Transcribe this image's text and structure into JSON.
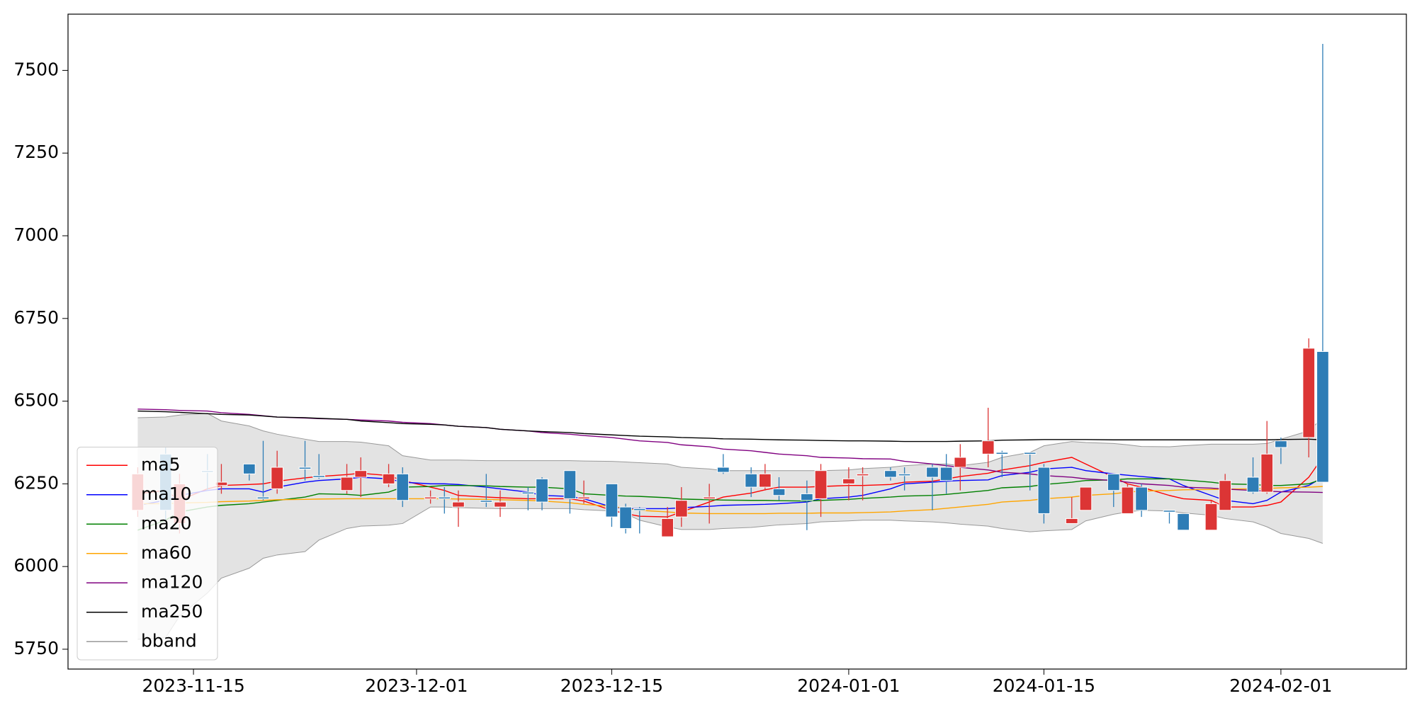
{
  "chart_data": {
    "type": "candlestick",
    "x": [
      "2023-11-11",
      "2023-11-13",
      "2023-11-14",
      "2023-11-16",
      "2023-11-17",
      "2023-11-19",
      "2023-11-20",
      "2023-11-21",
      "2023-11-23",
      "2023-11-24",
      "2023-11-26",
      "2023-11-27",
      "2023-11-29",
      "2023-11-30",
      "2023-12-02",
      "2023-12-03",
      "2023-12-04",
      "2023-12-06",
      "2023-12-07",
      "2023-12-09",
      "2023-12-10",
      "2023-12-12",
      "2023-12-13",
      "2023-12-15",
      "2023-12-16",
      "2023-12-17",
      "2023-12-19",
      "2023-12-20",
      "2023-12-22",
      "2023-12-23",
      "2023-12-25",
      "2023-12-26",
      "2023-12-27",
      "2023-12-29",
      "2023-12-30",
      "2024-01-01",
      "2024-01-02",
      "2024-01-04",
      "2024-01-05",
      "2024-01-07",
      "2024-01-08",
      "2024-01-09",
      "2024-01-11",
      "2024-01-12",
      "2024-01-14",
      "2024-01-15",
      "2024-01-17",
      "2024-01-18",
      "2024-01-20",
      "2024-01-21",
      "2024-01-22",
      "2024-01-24",
      "2024-01-25",
      "2024-01-27",
      "2024-01-28",
      "2024-01-30",
      "2024-01-31",
      "2024-02-01",
      "2024-02-03",
      "2024-02-04"
    ],
    "open": [
      6170,
      6340,
      6130,
      6290,
      6245,
      6310,
      6210,
      6235,
      6300,
      6275,
      6230,
      6270,
      6250,
      6280,
      6205,
      6210,
      6180,
      6200,
      6180,
      6225,
      6265,
      6290,
      6205,
      6250,
      6180,
      6175,
      6090,
      6150,
      6205,
      6300,
      6280,
      6240,
      6235,
      6220,
      6205,
      6250,
      6275,
      6290,
      6280,
      6300,
      6300,
      6300,
      6340,
      6345,
      6345,
      6300,
      6130,
      6170,
      6280,
      6160,
      6240,
      6170,
      6160,
      6110,
      6170,
      6270,
      6225,
      6380,
      6390,
      6650
    ],
    "high": [
      6300,
      6360,
      6280,
      6340,
      6310,
      6310,
      6380,
      6350,
      6380,
      6340,
      6310,
      6330,
      6310,
      6300,
      6230,
      6240,
      6230,
      6280,
      6230,
      6240,
      6270,
      6290,
      6260,
      6250,
      6190,
      6180,
      6180,
      6240,
      6250,
      6340,
      6300,
      6310,
      6270,
      6260,
      6310,
      6300,
      6300,
      6300,
      6300,
      6310,
      6340,
      6370,
      6480,
      6350,
      6340,
      6310,
      6210,
      6240,
      6280,
      6250,
      6250,
      6170,
      6160,
      6200,
      6280,
      6330,
      6440,
      6390,
      6690,
      7580
    ],
    "low": [
      6150,
      6140,
      6100,
      6230,
      6220,
      6260,
      6200,
      6220,
      6260,
      6265,
      6220,
      6210,
      6240,
      6180,
      6190,
      6160,
      6120,
      6180,
      6150,
      6170,
      6170,
      6160,
      6190,
      6120,
      6100,
      6100,
      6090,
      6120,
      6130,
      6280,
      6210,
      6230,
      6200,
      6110,
      6150,
      6200,
      6200,
      6260,
      6230,
      6170,
      6220,
      6230,
      6300,
      6270,
      6230,
      6130,
      6130,
      6170,
      6180,
      6160,
      6150,
      6130,
      6110,
      6110,
      6170,
      6220,
      6220,
      6310,
      6330,
      6255
    ],
    "close": [
      6280,
      6170,
      6250,
      6285,
      6255,
      6280,
      6205,
      6300,
      6295,
      6270,
      6270,
      6290,
      6280,
      6200,
      6210,
      6205,
      6195,
      6195,
      6195,
      6220,
      6195,
      6205,
      6210,
      6150,
      6115,
      6170,
      6145,
      6200,
      6210,
      6285,
      6240,
      6280,
      6215,
      6200,
      6290,
      6265,
      6280,
      6270,
      6275,
      6270,
      6260,
      6330,
      6380,
      6340,
      6340,
      6160,
      6145,
      6240,
      6230,
      6240,
      6170,
      6165,
      6110,
      6190,
      6260,
      6225,
      6340,
      6360,
      6660,
      6255
    ],
    "up_color": "#dc3535",
    "down_color": "#2e7db6",
    "series": [
      {
        "name": "ma5",
        "color": "#ff0000",
        "values": [
          6220,
          6230,
          6200,
          6235,
          6245,
          6248,
          6250,
          6258,
          6268,
          6272,
          6278,
          6282,
          6275,
          6260,
          6240,
          6230,
          6215,
          6210,
          6208,
          6205,
          6205,
          6205,
          6198,
          6170,
          6160,
          6152,
          6150,
          6165,
          6195,
          6210,
          6222,
          6232,
          6240,
          6240,
          6242,
          6245,
          6245,
          6248,
          6255,
          6258,
          6265,
          6272,
          6282,
          6292,
          6305,
          6315,
          6330,
          6310,
          6270,
          6250,
          6240,
          6215,
          6205,
          6200,
          6180,
          6180,
          6185,
          6195,
          6270,
          6330
        ]
      },
      {
        "name": "ma10",
        "color": "#0000ff",
        "values": [
          6185,
          6200,
          6215,
          6230,
          6235,
          6235,
          6225,
          6240,
          6255,
          6260,
          6265,
          6270,
          6265,
          6255,
          6250,
          6250,
          6248,
          6240,
          6235,
          6225,
          6215,
          6212,
          6205,
          6180,
          6175,
          6175,
          6175,
          6178,
          6182,
          6185,
          6187,
          6188,
          6190,
          6195,
          6205,
          6210,
          6215,
          6235,
          6250,
          6255,
          6258,
          6260,
          6262,
          6275,
          6285,
          6295,
          6300,
          6290,
          6280,
          6276,
          6272,
          6265,
          6245,
          6215,
          6200,
          6190,
          6200,
          6225,
          6245,
          6270
        ]
      },
      {
        "name": "ma20",
        "color": "#008000",
        "values": [
          6110,
          6140,
          6165,
          6180,
          6185,
          6190,
          6195,
          6200,
          6210,
          6220,
          6218,
          6215,
          6225,
          6240,
          6242,
          6245,
          6245,
          6244,
          6242,
          6240,
          6240,
          6235,
          6220,
          6215,
          6213,
          6212,
          6208,
          6204,
          6202,
          6201,
          6200,
          6200,
          6199,
          6198,
          6200,
          6203,
          6206,
          6210,
          6213,
          6215,
          6218,
          6222,
          6230,
          6238,
          6242,
          6248,
          6255,
          6260,
          6262,
          6265,
          6265,
          6265,
          6262,
          6255,
          6250,
          6248,
          6245,
          6245,
          6250,
          6265
        ]
      },
      {
        "name": "ma60",
        "color": "#ffa500",
        "values": [
          6190,
          6190,
          6192,
          6194,
          6196,
          6198,
          6200,
          6202,
          6203,
          6204,
          6205,
          6205,
          6205,
          6205,
          6205,
          6205,
          6204,
          6203,
          6202,
          6200,
          6198,
          6193,
          6188,
          6182,
          6176,
          6170,
          6165,
          6162,
          6160,
          6160,
          6160,
          6160,
          6161,
          6161,
          6162,
          6162,
          6163,
          6165,
          6168,
          6172,
          6176,
          6180,
          6188,
          6195,
          6200,
          6205,
          6210,
          6215,
          6220,
          6225,
          6228,
          6230,
          6232,
          6233,
          6234,
          6235,
          6236,
          6238,
          6240,
          6242
        ]
      },
      {
        "name": "ma120",
        "color": "#800080",
        "values": [
          6476,
          6474,
          6472,
          6470,
          6465,
          6460,
          6456,
          6452,
          6449,
          6447,
          6445,
          6443,
          6440,
          6436,
          6432,
          6428,
          6424,
          6420,
          6415,
          6410,
          6405,
          6400,
          6396,
          6390,
          6385,
          6380,
          6375,
          6368,
          6362,
          6355,
          6350,
          6345,
          6340,
          6335,
          6330,
          6328,
          6326,
          6325,
          6318,
          6310,
          6305,
          6300,
          6292,
          6285,
          6280,
          6275,
          6270,
          6265,
          6260,
          6255,
          6250,
          6245,
          6240,
          6237,
          6234,
          6230,
          6228,
          6226,
          6225,
          6224
        ]
      },
      {
        "name": "ma250",
        "color": "#000000",
        "values": [
          6470,
          6468,
          6466,
          6462,
          6460,
          6458,
          6455,
          6452,
          6450,
          6448,
          6445,
          6440,
          6435,
          6432,
          6430,
          6428,
          6424,
          6420,
          6415,
          6410,
          6408,
          6405,
          6402,
          6398,
          6396,
          6394,
          6392,
          6390,
          6388,
          6386,
          6385,
          6384,
          6383,
          6382,
          6381,
          6380,
          6380,
          6379,
          6378,
          6378,
          6378,
          6379,
          6380,
          6382,
          6383,
          6384,
          6384,
          6384,
          6383,
          6383,
          6383,
          6383,
          6383,
          6383,
          6383,
          6383,
          6383,
          6384,
          6385,
          6383
        ]
      }
    ],
    "band": {
      "name": "bband",
      "color": "#e3e3e3",
      "edge_color": "#999999",
      "upper": [
        6450,
        6452,
        6458,
        6463,
        6440,
        6425,
        6410,
        6400,
        6385,
        6378,
        6378,
        6376,
        6365,
        6335,
        6322,
        6322,
        6322,
        6320,
        6320,
        6320,
        6320,
        6320,
        6319,
        6318,
        6316,
        6314,
        6310,
        6300,
        6295,
        6290,
        6290,
        6290,
        6290,
        6290,
        6290,
        6292,
        6296,
        6300,
        6305,
        6310,
        6310,
        6305,
        6315,
        6330,
        6345,
        6365,
        6378,
        6375,
        6372,
        6368,
        6363,
        6362,
        6365,
        6370,
        6370,
        6370,
        6372,
        6385,
        6410,
        6450
      ],
      "lower": [
        5780,
        5785,
        5850,
        5920,
        5965,
        5995,
        6025,
        6035,
        6045,
        6080,
        6115,
        6122,
        6125,
        6130,
        6180,
        6180,
        6178,
        6176,
        6175,
        6175,
        6175,
        6175,
        6172,
        6168,
        6160,
        6140,
        6120,
        6112,
        6112,
        6115,
        6118,
        6122,
        6126,
        6130,
        6135,
        6138,
        6140,
        6140,
        6138,
        6135,
        6132,
        6128,
        6122,
        6115,
        6105,
        6108,
        6112,
        6138,
        6158,
        6165,
        6170,
        6168,
        6162,
        6155,
        6145,
        6135,
        6120,
        6100,
        6085,
        6070
      ]
    },
    "xlim": [
      "2023-11-06",
      "2024-02-10"
    ],
    "xticks": [
      "2023-11-15",
      "2023-12-01",
      "2023-12-15",
      "2024-01-01",
      "2024-01-15",
      "2024-02-01"
    ],
    "ylim": [
      5690,
      7670
    ],
    "yticks": [
      5750,
      6000,
      6250,
      6500,
      6750,
      7000,
      7250,
      7500
    ],
    "legend": "lower left"
  }
}
